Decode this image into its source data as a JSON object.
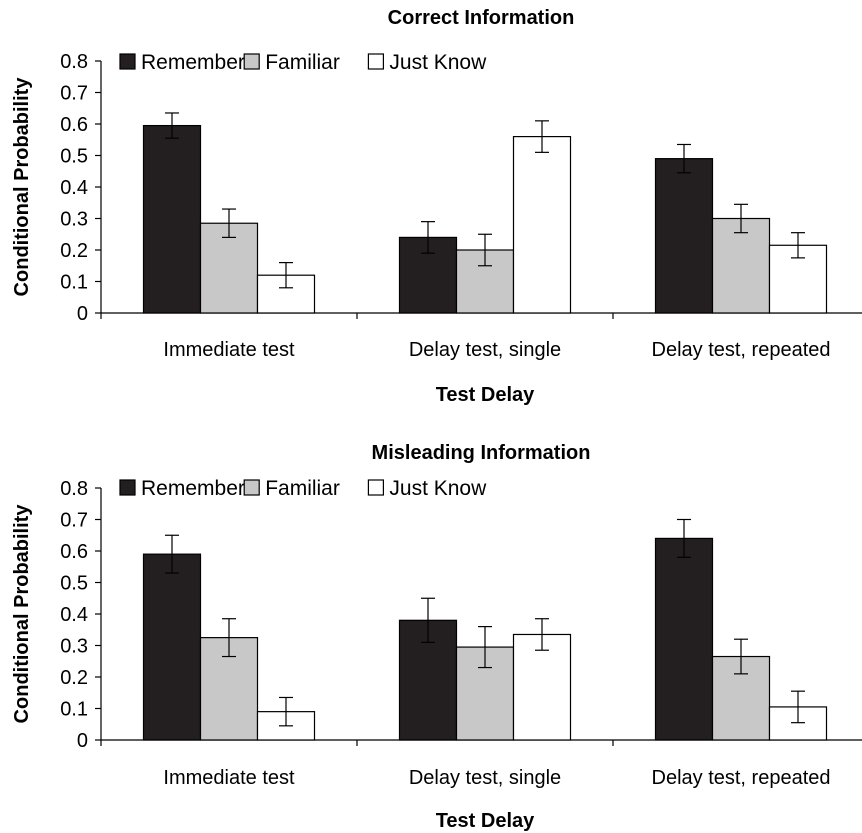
{
  "chart_data": [
    {
      "type": "bar",
      "title": "Correct Information",
      "xlabel": "Test Delay",
      "ylabel": "Conditional Probability",
      "ylim": [
        0,
        0.8
      ],
      "yticks": [
        "0",
        "0.1",
        "0.2",
        "0.3",
        "0.4",
        "0.5",
        "0.6",
        "0.7",
        "0.8"
      ],
      "categories": [
        "Immediate test",
        "Delay test, single",
        "Delay test, repeated"
      ],
      "legend_position": "top-left",
      "series": [
        {
          "name": "Remember",
          "color": "#231f20",
          "values": [
            0.595,
            0.24,
            0.49
          ],
          "errors": [
            0.04,
            0.05,
            0.045
          ]
        },
        {
          "name": "Familiar",
          "color": "#c8c8c8",
          "values": [
            0.285,
            0.2,
            0.3
          ],
          "errors": [
            0.045,
            0.05,
            0.045
          ]
        },
        {
          "name": "Just Know",
          "color": "#ffffff",
          "values": [
            0.12,
            0.56,
            0.215
          ],
          "errors": [
            0.04,
            0.05,
            0.04
          ]
        }
      ]
    },
    {
      "type": "bar",
      "title": "Misleading Information",
      "xlabel": "Test Delay",
      "ylabel": "Conditional Probability",
      "ylim": [
        0,
        0.8
      ],
      "yticks": [
        "0",
        "0.1",
        "0.2",
        "0.3",
        "0.4",
        "0.5",
        "0.6",
        "0.7",
        "0.8"
      ],
      "categories": [
        "Immediate test",
        "Delay test, single",
        "Delay test, repeated"
      ],
      "legend_position": "top-left",
      "series": [
        {
          "name": "Remember",
          "color": "#231f20",
          "values": [
            0.59,
            0.38,
            0.64
          ],
          "errors": [
            0.06,
            0.07,
            0.06
          ]
        },
        {
          "name": "Familiar",
          "color": "#c8c8c8",
          "values": [
            0.325,
            0.295,
            0.265
          ],
          "errors": [
            0.06,
            0.065,
            0.055
          ]
        },
        {
          "name": "Just Know",
          "color": "#ffffff",
          "values": [
            0.09,
            0.335,
            0.105
          ],
          "errors": [
            0.045,
            0.05,
            0.05
          ]
        }
      ]
    }
  ]
}
